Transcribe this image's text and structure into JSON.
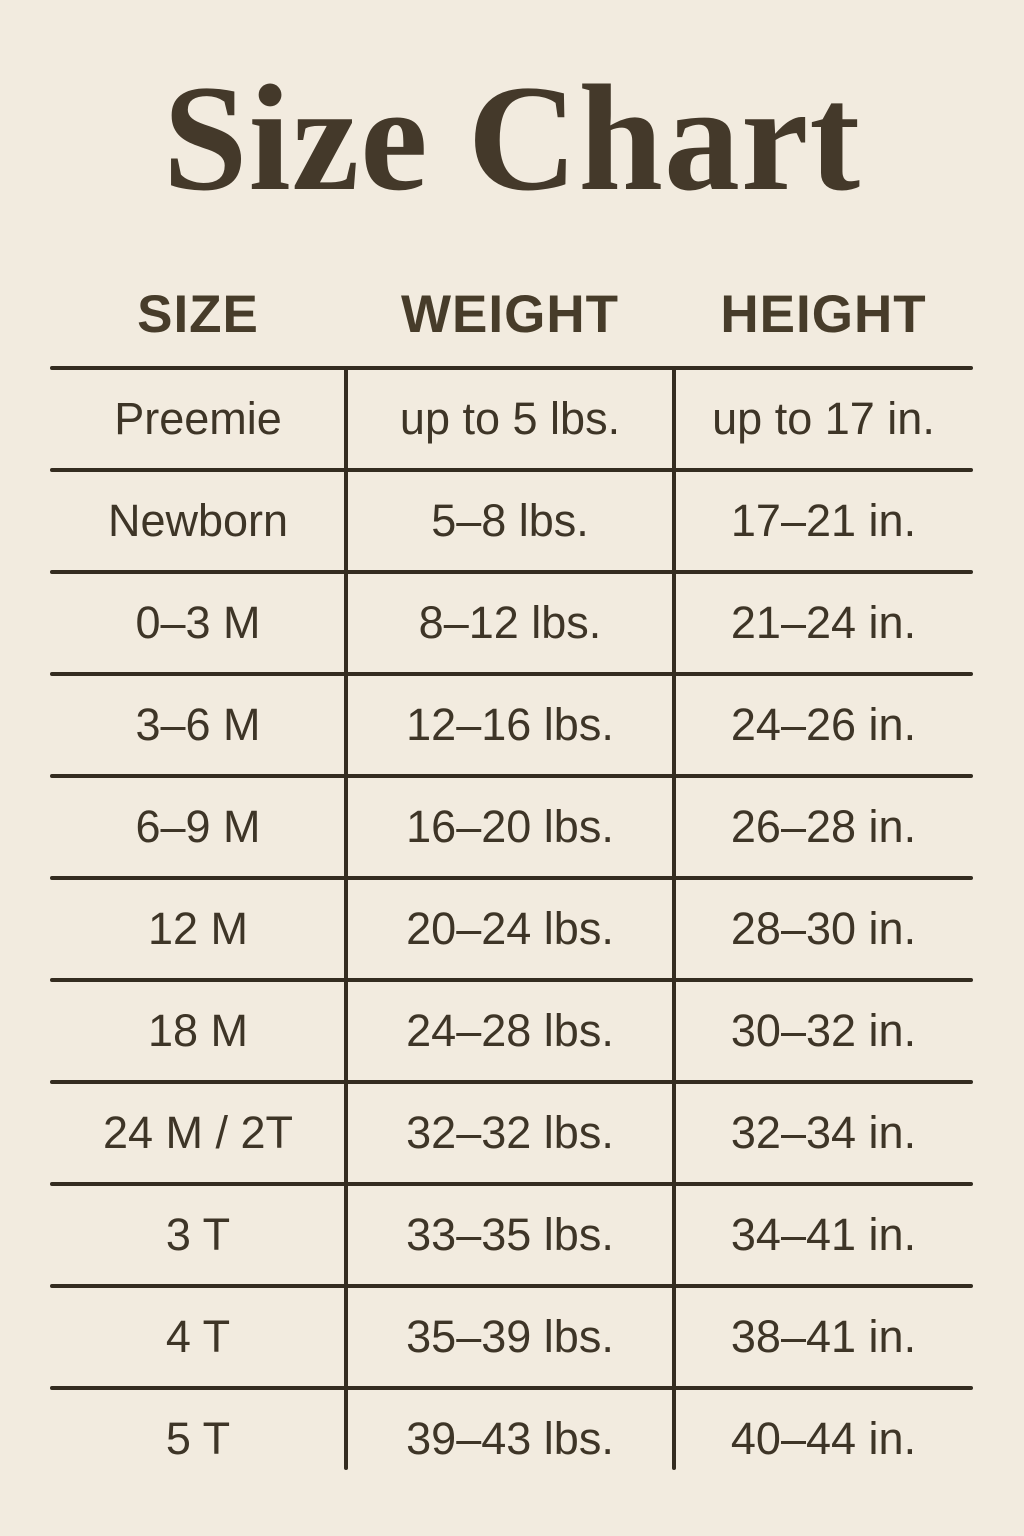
{
  "page": {
    "title": "Size Chart",
    "colors": {
      "background": "#f2ebdf",
      "text": "#3e3527",
      "title": "#44392a",
      "lines": "#342c20"
    }
  },
  "chart_data": {
    "type": "table",
    "title": "Size Chart",
    "columns": [
      "SIZE",
      "WEIGHT",
      "HEIGHT"
    ],
    "rows": [
      [
        "Preemie",
        "up to 5 lbs.",
        "up to 17 in."
      ],
      [
        "Newborn",
        "5–8 lbs.",
        "17–21 in."
      ],
      [
        "0–3 M",
        "8–12 lbs.",
        "21–24 in."
      ],
      [
        "3–6 M",
        "12–16 lbs.",
        "24–26 in."
      ],
      [
        "6–9 M",
        "16–20 lbs.",
        "26–28 in."
      ],
      [
        "12 M",
        "20–24 lbs.",
        "28–30 in."
      ],
      [
        "18 M",
        "24–28 lbs.",
        "30–32 in."
      ],
      [
        "24 M / 2T",
        "32–32 lbs.",
        "32–34 in."
      ],
      [
        "3 T",
        "33–35 lbs.",
        "34–41 in."
      ],
      [
        "4 T",
        "35–39 lbs.",
        "38–41 in."
      ],
      [
        "5 T",
        "39–43 lbs.",
        "40–44 in."
      ]
    ]
  }
}
